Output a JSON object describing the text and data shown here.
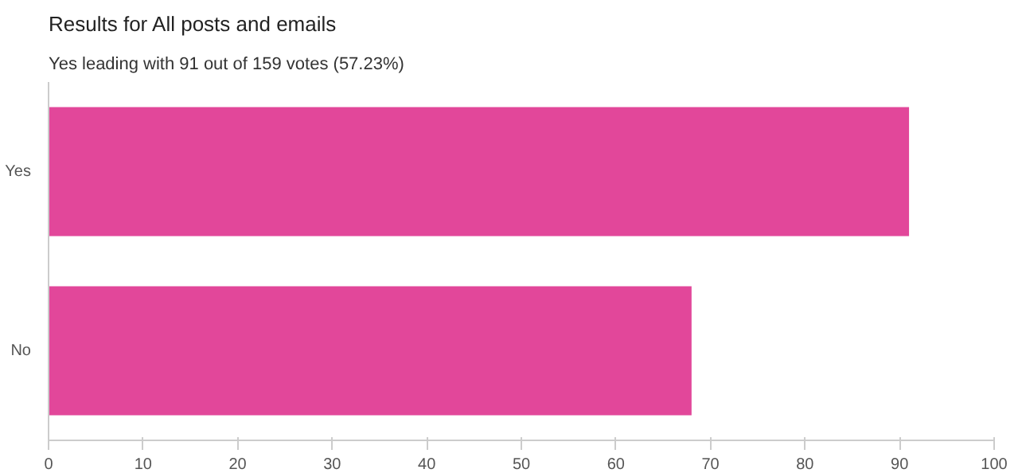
{
  "chart_data": {
    "type": "bar",
    "orientation": "horizontal",
    "title": "Results for All posts and emails",
    "subtitle": "Yes leading with 91 out of 159 votes (57.23%)",
    "categories": [
      "Yes",
      "No"
    ],
    "values": [
      91,
      68
    ],
    "color": "#e2479a",
    "xlim": [
      0,
      100
    ],
    "xticks": [
      0,
      10,
      20,
      30,
      40,
      50,
      60,
      70,
      80,
      90,
      100
    ],
    "grid": false
  }
}
